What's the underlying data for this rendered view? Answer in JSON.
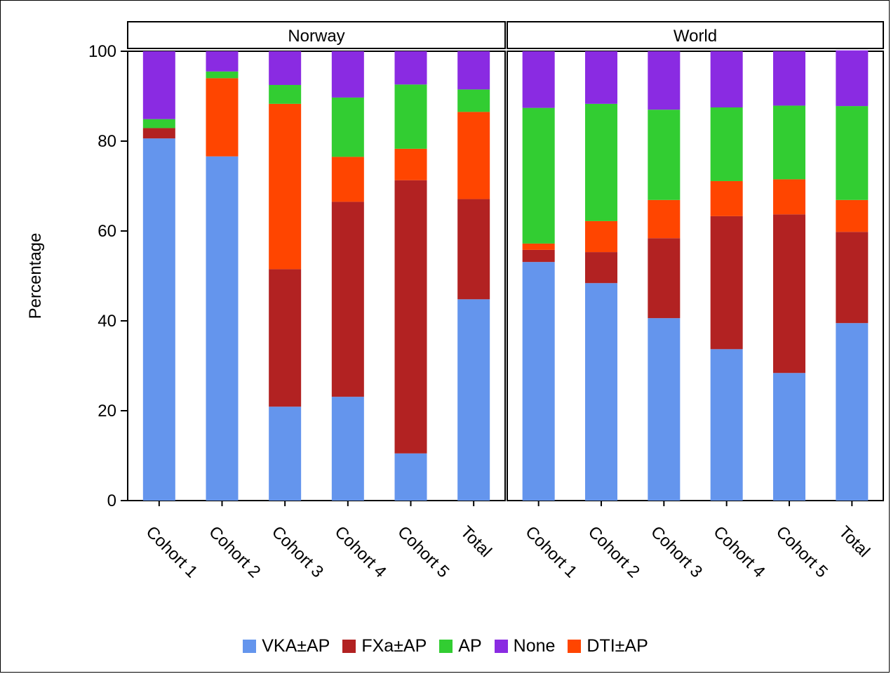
{
  "chart_data": {
    "type": "bar",
    "stacked": true,
    "ylabel": "Percentage",
    "xlabel": "",
    "ylim": [
      0,
      100
    ],
    "yticks": [
      0,
      20,
      40,
      60,
      80,
      100
    ],
    "legend_position": "bottom",
    "categories": [
      "Cohort 1",
      "Cohort 2",
      "Cohort 3",
      "Cohort 4",
      "Cohort 5",
      "Total"
    ],
    "stack_order": [
      "VKA±AP",
      "FXa±AP",
      "DTI±AP",
      "AP",
      "None"
    ],
    "legend": [
      {
        "name": "VKA±AP",
        "color": "#6495ED"
      },
      {
        "name": "FXa±AP",
        "color": "#B22222"
      },
      {
        "name": "AP",
        "color": "#32CD32"
      },
      {
        "name": "None",
        "color": "#8A2BE2"
      },
      {
        "name": "DTI±AP",
        "color": "#FF4500"
      }
    ],
    "panels": [
      {
        "title": "Norway",
        "series": [
          {
            "name": "VKA±AP",
            "color": "#6495ED",
            "values": [
              80.6,
              76.6,
              20.9,
              23.1,
              10.5,
              44.8
            ]
          },
          {
            "name": "FXa±AP",
            "color": "#B22222",
            "values": [
              2.3,
              0.0,
              30.6,
              43.4,
              60.8,
              22.3
            ]
          },
          {
            "name": "DTI±AP",
            "color": "#FF4500",
            "values": [
              0.0,
              17.4,
              36.8,
              10.0,
              7.0,
              19.4
            ]
          },
          {
            "name": "AP",
            "color": "#32CD32",
            "values": [
              2.0,
              1.5,
              4.2,
              13.2,
              14.3,
              5.0
            ]
          },
          {
            "name": "None",
            "color": "#8A2BE2",
            "values": [
              15.1,
              4.5,
              7.5,
              10.3,
              7.4,
              8.5
            ]
          }
        ]
      },
      {
        "title": "World",
        "series": [
          {
            "name": "VKA±AP",
            "color": "#6495ED",
            "values": [
              53.1,
              48.4,
              40.6,
              33.7,
              28.4,
              39.5
            ]
          },
          {
            "name": "FXa±AP",
            "color": "#B22222",
            "values": [
              2.7,
              6.9,
              17.8,
              29.6,
              35.3,
              20.3
            ]
          },
          {
            "name": "DTI±AP",
            "color": "#FF4500",
            "values": [
              1.4,
              6.9,
              8.5,
              7.8,
              7.8,
              7.1
            ]
          },
          {
            "name": "AP",
            "color": "#32CD32",
            "values": [
              30.2,
              26.1,
              20.1,
              16.4,
              16.4,
              20.9
            ]
          },
          {
            "name": "None",
            "color": "#8A2BE2",
            "values": [
              12.6,
              11.7,
              13.0,
              12.5,
              12.1,
              12.4
            ]
          }
        ]
      }
    ]
  }
}
